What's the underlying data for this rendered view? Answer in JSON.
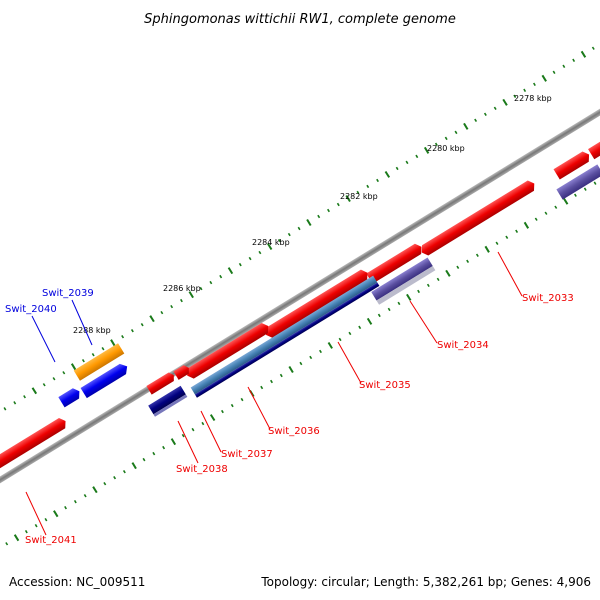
{
  "title": "Sphingomonas wittichii RW1, complete genome",
  "footer": {
    "accession": "Accession: NC_009511",
    "summary": "Topology: circular; Length: 5,382,261 bp; Genes: 4,906"
  },
  "scale_labels": [
    "2278 kbp",
    "2280 kbp",
    "2282 kbp",
    "2284 kbp",
    "2286 kbp",
    "2288 kbp"
  ],
  "gene_labels": [
    {
      "text": "Swit_2033",
      "color": "#ee0000"
    },
    {
      "text": "Swit_2034",
      "color": "#ee0000"
    },
    {
      "text": "Swit_2035",
      "color": "#ee0000"
    },
    {
      "text": "Swit_2036",
      "color": "#ee0000"
    },
    {
      "text": "Swit_2037",
      "color": "#ee0000"
    },
    {
      "text": "Swit_2038",
      "color": "#ee0000"
    },
    {
      "text": "Swit_2039",
      "color": "#0000dd"
    },
    {
      "text": "Swit_2040",
      "color": "#0000dd"
    },
    {
      "text": "Swit_2041",
      "color": "#ee0000"
    }
  ],
  "colors": {
    "backbone": "#888888",
    "forward_cds": "#ee0000",
    "reverse_cds": "#0000ee",
    "orange_feature": "#ff9900",
    "navy_feature": "#000080",
    "steelblue_feature": "#4682b4",
    "slate_feature": "#5a4fa0",
    "tick": "#1a7a1a"
  }
}
